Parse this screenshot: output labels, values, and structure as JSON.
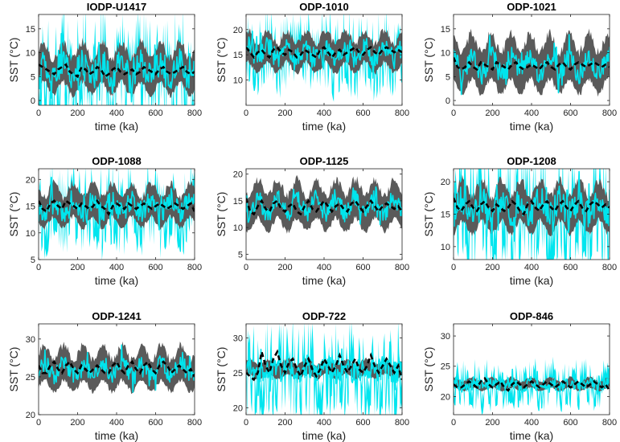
{
  "colors": {
    "envelope": "#5a5a5a",
    "ensemble": "#00e5ee",
    "mean": "#000000",
    "axis": "#222222"
  },
  "chart_data": [
    {
      "type": "line",
      "title": "IODP-U1417",
      "xlabel": "time (ka)",
      "ylabel": "SST (°C)",
      "xlim": [
        0,
        800
      ],
      "ylim": [
        -1,
        18
      ],
      "xticks": [
        "0",
        "200",
        "400",
        "600",
        "800"
      ],
      "yticks": [
        "0",
        "5",
        "10",
        "15"
      ],
      "mean_sst": 6.5,
      "envelope_halfwidth": 4,
      "cyan_spread": 5,
      "series": [
        {
          "values": [
            7.5,
            7,
            6.5,
            6,
            5.5,
            6.5,
            7,
            7.5,
            6,
            5.5,
            5,
            7,
            6.5,
            5.5,
            6,
            7,
            6.5,
            5,
            5.5,
            6.5,
            7,
            6,
            5.5,
            6,
            6.5,
            5.5,
            6,
            7,
            6.5,
            6,
            5.5,
            6.5,
            7,
            6,
            5.5,
            6,
            6.5,
            7,
            6,
            5.5,
            6
          ]
        }
      ]
    },
    {
      "type": "line",
      "title": "ODP-1010",
      "xlabel": "time (ka)",
      "ylabel": "SST (°C)",
      "xlim": [
        0,
        800
      ],
      "ylim": [
        5,
        23
      ],
      "xticks": [
        "0",
        "200",
        "400",
        "600",
        "800"
      ],
      "yticks": [
        "10",
        "15",
        "20"
      ],
      "mean_sst": 15.5,
      "envelope_halfwidth": 3,
      "cyan_spread": 3.5,
      "series": [
        {
          "values": [
            16.5,
            15.5,
            14.5,
            15.5,
            16,
            15,
            14.5,
            16,
            16.5,
            15.5,
            15,
            16,
            15.5,
            14.5,
            15,
            16,
            15.5,
            15,
            14.5,
            16,
            16.5,
            15.5,
            14.5,
            15.5,
            16,
            15,
            15.5,
            16,
            16.5,
            15.5,
            15,
            16,
            16.5,
            15.5,
            15,
            16,
            16.5,
            16,
            15.5,
            16,
            15.5
          ]
        }
      ]
    },
    {
      "type": "line",
      "title": "ODP-1021",
      "xlabel": "time (ka)",
      "ylabel": "SST (°C)",
      "xlim": [
        0,
        800
      ],
      "ylim": [
        -1,
        18
      ],
      "xticks": [
        "0",
        "200",
        "400",
        "600",
        "800"
      ],
      "yticks": [
        "0",
        "5",
        "10",
        "15"
      ],
      "mean_sst": 7.5,
      "envelope_halfwidth": 4.5,
      "cyan_spread": 4,
      "series": [
        {
          "values": [
            9,
            7,
            6.5,
            7,
            8,
            7,
            6.5,
            8,
            7.5,
            7,
            6.5,
            8,
            7.5,
            7,
            6.5,
            7.5,
            8,
            7,
            6.5,
            7,
            7.5,
            7,
            6.5,
            7.5,
            8,
            7,
            6.5,
            7.5,
            8,
            7,
            6.5,
            7.5,
            8,
            7.5,
            7,
            7.5,
            8,
            7.5,
            7,
            7.5,
            7
          ]
        }
      ]
    },
    {
      "type": "line",
      "title": "ODP-1088",
      "xlabel": "time (ka)",
      "ylabel": "SST (°C)",
      "xlim": [
        0,
        800
      ],
      "ylim": [
        5,
        22
      ],
      "xticks": [
        "0",
        "200",
        "400",
        "600",
        "800"
      ],
      "yticks": [
        "5",
        "10",
        "15",
        "20"
      ],
      "mean_sst": 15,
      "envelope_halfwidth": 3,
      "cyan_spread": 3.5,
      "series": [
        {
          "values": [
            16,
            14.5,
            14,
            15.5,
            16,
            15,
            14.5,
            16,
            15.5,
            15,
            14.5,
            15.5,
            15,
            14.5,
            15,
            16,
            15,
            14.5,
            13.5,
            15,
            15.5,
            15,
            14.5,
            15.5,
            15,
            14.5,
            15,
            15.5,
            15,
            14.5,
            15,
            15.5,
            15,
            14.5,
            15,
            15.5,
            15,
            14.5,
            15,
            15.5,
            14
          ]
        }
      ]
    },
    {
      "type": "line",
      "title": "ODP-1125",
      "xlabel": "time (ka)",
      "ylabel": "SST (°C)",
      "xlim": [
        0,
        800
      ],
      "ylim": [
        4,
        21
      ],
      "xticks": [
        "0",
        "200",
        "400",
        "600",
        "800"
      ],
      "yticks": [
        "5",
        "10",
        "15",
        "20"
      ],
      "mean_sst": 14,
      "envelope_halfwidth": 3.5,
      "cyan_spread": 3,
      "series": [
        {
          "values": [
            15.5,
            13,
            12.5,
            14,
            15,
            13.5,
            13,
            14.5,
            15,
            13.5,
            13,
            14,
            14.5,
            13,
            12.5,
            14,
            15,
            13.5,
            13,
            14,
            15,
            14,
            13,
            14,
            14.5,
            13.5,
            13,
            14.5,
            15,
            14,
            13,
            14,
            15,
            14,
            13,
            14,
            14.5,
            14,
            13.5,
            14,
            13
          ]
        }
      ]
    },
    {
      "type": "line",
      "title": "ODP-1208",
      "xlabel": "time (ka)",
      "ylabel": "SST (°C)",
      "xlim": [
        0,
        800
      ],
      "ylim": [
        8,
        22
      ],
      "xticks": [
        "0",
        "200",
        "400",
        "600",
        "800"
      ],
      "yticks": [
        "10",
        "15",
        "20"
      ],
      "mean_sst": 16,
      "envelope_halfwidth": 3,
      "cyan_spread": 4,
      "series": [
        {
          "values": [
            17.5,
            16,
            15.5,
            16.5,
            17,
            16,
            15.5,
            16.5,
            17,
            16,
            15.5,
            16.5,
            16,
            15.5,
            16,
            17,
            16.5,
            15.5,
            15,
            16.5,
            17,
            16,
            15.5,
            16.5,
            17,
            16,
            15.5,
            16.5,
            17,
            16,
            15.5,
            16.5,
            17,
            16,
            15.5,
            16.5,
            17,
            16.5,
            16,
            16.5,
            16
          ]
        }
      ]
    },
    {
      "type": "line",
      "title": "ODP-1241",
      "xlabel": "time (ka)",
      "ylabel": "SST (°C)",
      "xlim": [
        0,
        800
      ],
      "ylim": [
        20,
        32
      ],
      "xticks": [
        "0",
        "200",
        "400",
        "600",
        "800"
      ],
      "yticks": [
        "20",
        "25",
        "30"
      ],
      "mean_sst": 26,
      "envelope_halfwidth": 2.2,
      "cyan_spread": 2,
      "series": [
        {
          "values": [
            26.5,
            25.5,
            25.5,
            26.5,
            27,
            26,
            25.5,
            26.5,
            27,
            26,
            25.5,
            26.5,
            26,
            25.5,
            26,
            26.5,
            26,
            25.5,
            25.5,
            26.5,
            27,
            26,
            25.5,
            26.5,
            27,
            26,
            25.5,
            26.5,
            27,
            26,
            25.5,
            26.5,
            27,
            26.5,
            25.5,
            26,
            26.5,
            26,
            25.5,
            26,
            25
          ]
        }
      ]
    },
    {
      "type": "line",
      "title": "ODP-722",
      "xlabel": "time (ka)",
      "ylabel": "SST (°C)",
      "xlim": [
        0,
        800
      ],
      "ylim": [
        19,
        32
      ],
      "xticks": [
        "0",
        "200",
        "400",
        "600",
        "800"
      ],
      "yticks": [
        "20",
        "25",
        "30"
      ],
      "mean_sst": 25.5,
      "envelope_halfwidth": 1,
      "cyan_spread": 3,
      "series": [
        {
          "values": [
            25,
            24.5,
            24,
            25,
            28,
            26,
            25,
            27,
            28,
            26,
            25,
            26.5,
            27,
            25.5,
            24.5,
            26,
            27,
            25.5,
            24.5,
            25.5,
            27,
            26,
            25,
            26,
            27.5,
            26,
            25,
            26,
            27,
            25.5,
            25,
            26,
            27.5,
            26,
            25,
            26,
            27,
            26,
            25,
            26,
            24
          ]
        }
      ]
    },
    {
      "type": "line",
      "title": "ODP-846",
      "xlabel": "time (ka)",
      "ylabel": "SST (°C)",
      "xlim": [
        0,
        800
      ],
      "ylim": [
        17,
        32
      ],
      "xticks": [
        "0",
        "200",
        "400",
        "600",
        "800"
      ],
      "yticks": [
        "20",
        "25",
        "30"
      ],
      "mean_sst": 22,
      "envelope_halfwidth": 0.8,
      "cyan_spread": 1.8,
      "series": [
        {
          "values": [
            22,
            21.5,
            21.5,
            22,
            22.5,
            22,
            21.5,
            22.5,
            23,
            22,
            21.5,
            22,
            22.5,
            21.5,
            21,
            22,
            22.5,
            22,
            21.5,
            22,
            22.5,
            22,
            21.5,
            22,
            22.5,
            22,
            21.5,
            22,
            22.5,
            22,
            21.5,
            22,
            22.5,
            22,
            21.5,
            22,
            22.5,
            22,
            21.5,
            22,
            21
          ]
        }
      ]
    }
  ]
}
